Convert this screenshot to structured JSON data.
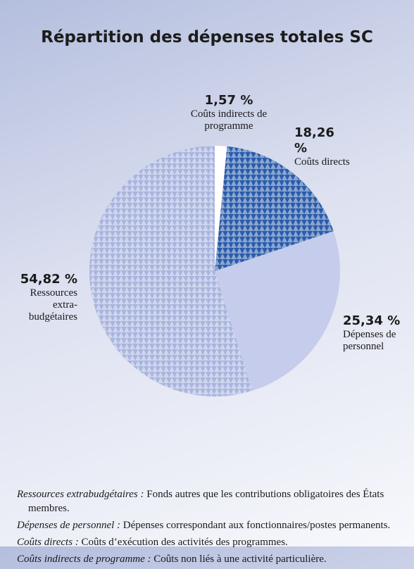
{
  "chart_data": {
    "type": "pie",
    "title": "Répartition des dépenses totales SC",
    "categories": [
      "Coûts indirects de programme",
      "Coûts directs",
      "Dépenses de personnel",
      "Ressources extra-budgétaires"
    ],
    "values": [
      1.57,
      18.26,
      25.34,
      54.82
    ],
    "value_labels": [
      "1,57 %",
      "18,26 %",
      "25,34 %",
      "54,82 %"
    ],
    "colors": [
      "#ffffff",
      "#2b5cab",
      "#c6cceb",
      "#a9b5de"
    ]
  },
  "notes": [
    {
      "term": "Ressources extrabudgétaires :",
      "text": "Fonds autres que les contributions obligatoires des États membres."
    },
    {
      "term": "Dépenses de personnel :",
      "text": "Dépenses correspondant aux fonctionnaires/postes permanents."
    },
    {
      "term": "Coûts directs :",
      "text": "Coûts d’exécution des activités des programmes."
    },
    {
      "term": "Coûts indirects de programme :",
      "text": "Coûts non liés à une activité particulière."
    }
  ]
}
